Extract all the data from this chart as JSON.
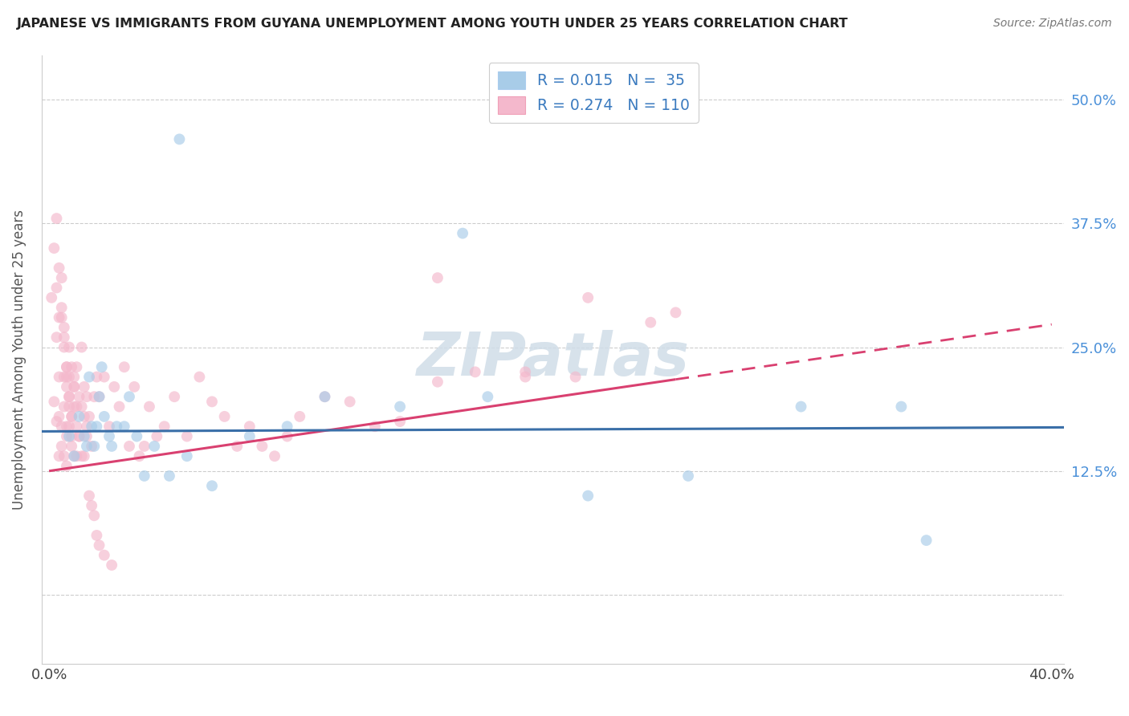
{
  "title": "JAPANESE VS IMMIGRANTS FROM GUYANA UNEMPLOYMENT AMONG YOUTH UNDER 25 YEARS CORRELATION CHART",
  "source": "Source: ZipAtlas.com",
  "ylabel": "Unemployment Among Youth under 25 years",
  "watermark": "ZIPatlas",
  "legend1_label": "R = 0.015   N =  35",
  "legend2_label": "R = 0.274   N = 110",
  "R1": 0.015,
  "N1": 35,
  "R2": 0.274,
  "N2": 110,
  "color1": "#a8cce8",
  "color2": "#f4b8cc",
  "line_color1": "#3a6fa8",
  "line_color2": "#d94070",
  "xlim": [
    -0.003,
    0.405
  ],
  "ylim": [
    -0.07,
    0.545
  ],
  "ytick_vals": [
    0.0,
    0.125,
    0.25,
    0.375,
    0.5
  ],
  "ytick_labels_right": [
    "",
    "12.5%",
    "25.0%",
    "37.5%",
    "50.0%"
  ],
  "xtick_vals": [
    0.0,
    0.1,
    0.2,
    0.3,
    0.4
  ],
  "xtick_labels": [
    "0.0%",
    "",
    "",
    "",
    "40.0%"
  ],
  "title_fontsize": 11.5,
  "source_fontsize": 10,
  "axis_label_fontsize": 13,
  "tick_fontsize": 13,
  "marker_size": 100,
  "marker_alpha": 0.65,
  "japanese_x": [
    0.008,
    0.01,
    0.012,
    0.014,
    0.015,
    0.016,
    0.017,
    0.018,
    0.019,
    0.02,
    0.021,
    0.022,
    0.024,
    0.025,
    0.027,
    0.03,
    0.032,
    0.035,
    0.038,
    0.042,
    0.048,
    0.055,
    0.065,
    0.08,
    0.095,
    0.11,
    0.14,
    0.175,
    0.215,
    0.255,
    0.3,
    0.34,
    0.052,
    0.165,
    0.35
  ],
  "japanese_y": [
    0.16,
    0.14,
    0.18,
    0.16,
    0.15,
    0.22,
    0.17,
    0.15,
    0.17,
    0.2,
    0.23,
    0.18,
    0.16,
    0.15,
    0.17,
    0.17,
    0.2,
    0.16,
    0.12,
    0.15,
    0.12,
    0.14,
    0.11,
    0.16,
    0.17,
    0.2,
    0.19,
    0.2,
    0.1,
    0.12,
    0.19,
    0.19,
    0.46,
    0.365,
    0.055
  ],
  "guyana_x": [
    0.002,
    0.003,
    0.003,
    0.004,
    0.004,
    0.004,
    0.005,
    0.005,
    0.005,
    0.006,
    0.006,
    0.006,
    0.006,
    0.007,
    0.007,
    0.007,
    0.007,
    0.007,
    0.008,
    0.008,
    0.008,
    0.008,
    0.009,
    0.009,
    0.009,
    0.01,
    0.01,
    0.01,
    0.011,
    0.011,
    0.011,
    0.012,
    0.012,
    0.013,
    0.013,
    0.014,
    0.014,
    0.015,
    0.015,
    0.016,
    0.017,
    0.018,
    0.019,
    0.02,
    0.022,
    0.024,
    0.026,
    0.028,
    0.03,
    0.032,
    0.034,
    0.036,
    0.038,
    0.04,
    0.043,
    0.046,
    0.05,
    0.055,
    0.06,
    0.065,
    0.07,
    0.075,
    0.08,
    0.085,
    0.09,
    0.095,
    0.1,
    0.11,
    0.12,
    0.13,
    0.14,
    0.155,
    0.17,
    0.19,
    0.21,
    0.24,
    0.001,
    0.002,
    0.003,
    0.003,
    0.004,
    0.004,
    0.005,
    0.005,
    0.006,
    0.006,
    0.007,
    0.007,
    0.008,
    0.008,
    0.009,
    0.009,
    0.01,
    0.01,
    0.011,
    0.012,
    0.013,
    0.014,
    0.015,
    0.016,
    0.017,
    0.018,
    0.019,
    0.02,
    0.022,
    0.025,
    0.155,
    0.19,
    0.215,
    0.25
  ],
  "guyana_y": [
    0.195,
    0.175,
    0.26,
    0.14,
    0.18,
    0.22,
    0.15,
    0.17,
    0.28,
    0.22,
    0.25,
    0.14,
    0.19,
    0.17,
    0.21,
    0.23,
    0.16,
    0.13,
    0.2,
    0.17,
    0.25,
    0.22,
    0.15,
    0.23,
    0.18,
    0.21,
    0.14,
    0.19,
    0.17,
    0.23,
    0.14,
    0.2,
    0.16,
    0.19,
    0.25,
    0.14,
    0.21,
    0.16,
    0.2,
    0.18,
    0.15,
    0.2,
    0.22,
    0.2,
    0.22,
    0.17,
    0.21,
    0.19,
    0.23,
    0.15,
    0.21,
    0.14,
    0.15,
    0.19,
    0.16,
    0.17,
    0.2,
    0.16,
    0.22,
    0.195,
    0.18,
    0.15,
    0.17,
    0.15,
    0.14,
    0.16,
    0.18,
    0.2,
    0.195,
    0.17,
    0.175,
    0.32,
    0.225,
    0.225,
    0.22,
    0.275,
    0.3,
    0.35,
    0.31,
    0.38,
    0.33,
    0.28,
    0.29,
    0.32,
    0.27,
    0.26,
    0.23,
    0.22,
    0.2,
    0.19,
    0.18,
    0.16,
    0.21,
    0.22,
    0.19,
    0.16,
    0.14,
    0.18,
    0.17,
    0.1,
    0.09,
    0.08,
    0.06,
    0.05,
    0.04,
    0.03,
    0.215,
    0.22,
    0.3,
    0.285
  ]
}
